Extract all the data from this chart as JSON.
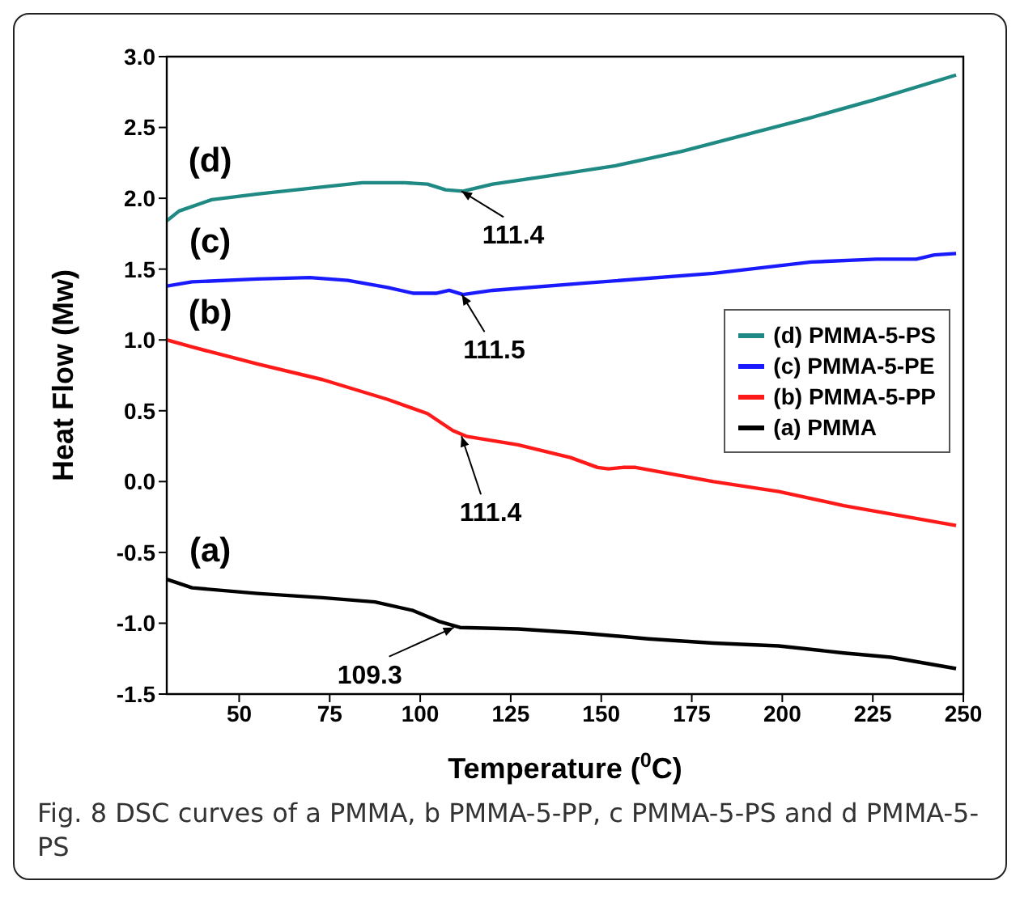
{
  "chart_data": {
    "type": "line",
    "xlabel": "Temperature ($^{0}$C)",
    "ylabel": "Heat Flow (Mw)",
    "xlim": [
      30,
      250
    ],
    "xticks": [
      50,
      75,
      100,
      125,
      150,
      175,
      200,
      225,
      250
    ],
    "ylim": [
      -1.5,
      3
    ],
    "yticks": [
      {
        "value": -1.5,
        "label": "-1.5"
      },
      {
        "value": -1,
        "label": "-1.0"
      },
      {
        "value": -0.5,
        "label": "-0.5"
      },
      {
        "value": 0,
        "label": "0.0"
      },
      {
        "value": 0.5,
        "label": "0.5"
      },
      {
        "value": 1,
        "label": "1.0"
      },
      {
        "value": 1.5,
        "label": "1.5"
      },
      {
        "value": 2,
        "label": "2.0"
      },
      {
        "value": 2.5,
        "label": "2.5"
      },
      {
        "value": 3,
        "label": "3.0"
      }
    ],
    "grid": false,
    "legend": "right",
    "marker": "none",
    "line_style": "solid",
    "series": [
      {
        "name": "(d) PMMA-5-PS",
        "color": "#1f8a84",
        "x": [
          30,
          33.4,
          42.4,
          55,
          73,
          84,
          95.6,
          102,
          107,
          111.8,
          120,
          136,
          154,
          172,
          190,
          208,
          226,
          248
        ],
        "values": [
          1.84,
          1.91,
          1.99,
          2.03,
          2.08,
          2.11,
          2.11,
          2.1,
          2.06,
          2.05,
          2.1,
          2.16,
          2.23,
          2.33,
          2.45,
          2.57,
          2.7,
          2.87
        ]
      },
      {
        "name": "(c) PMMA-5-PE",
        "color": "#1a1aff",
        "x": [
          30,
          37,
          55,
          69.5,
          80,
          91,
          98,
          104.6,
          108,
          111.8,
          120,
          145,
          181,
          208,
          226,
          237,
          242,
          248
        ],
        "values": [
          1.38,
          1.41,
          1.43,
          1.44,
          1.42,
          1.37,
          1.33,
          1.33,
          1.35,
          1.32,
          1.35,
          1.4,
          1.47,
          1.55,
          1.57,
          1.57,
          1.6,
          1.61
        ]
      },
      {
        "name": "(b) PMMA-5-PP",
        "color": "#ff1a1a",
        "x": [
          30,
          37,
          55,
          73,
          91,
          102,
          109,
          112.7,
          127,
          141.5,
          149,
          152,
          156,
          159.5,
          181,
          199,
          217,
          248
        ],
        "values": [
          1,
          0.95,
          0.83,
          0.72,
          0.58,
          0.48,
          0.36,
          0.32,
          0.26,
          0.17,
          0.1,
          0.09,
          0.1,
          0.1,
          0,
          -0.07,
          -0.17,
          -0.31
        ]
      },
      {
        "name": "(a) PMMA",
        "color": "#000000",
        "x": [
          30,
          37,
          55,
          73,
          87.5,
          98,
          105.5,
          111,
          127,
          145,
          163,
          181,
          199,
          217,
          230,
          248
        ],
        "values": [
          -0.69,
          -0.75,
          -0.79,
          -0.82,
          -0.85,
          -0.91,
          -0.99,
          -1.03,
          -1.04,
          -1.07,
          -1.11,
          -1.14,
          -1.16,
          -1.21,
          -1.24,
          -1.32
        ]
      }
    ],
    "annotations": [
      "(d)",
      "(c)",
      "(b)",
      "(a)",
      {
        "text": "111.4",
        "x": 111.4,
        "y": 2.05
      },
      {
        "text": "111.5",
        "x": 111.5,
        "y": 1.32
      },
      {
        "text": "111.4",
        "x": 111.4,
        "y": 0.32
      },
      {
        "text": "109.3",
        "x": 109.3,
        "y": -1.03
      },
      "Fig. 8 DSC curves of a PMMA, b PMMA-5-PP, c PMMA-5-PS and d PMMA-5-PS"
    ]
  }
}
